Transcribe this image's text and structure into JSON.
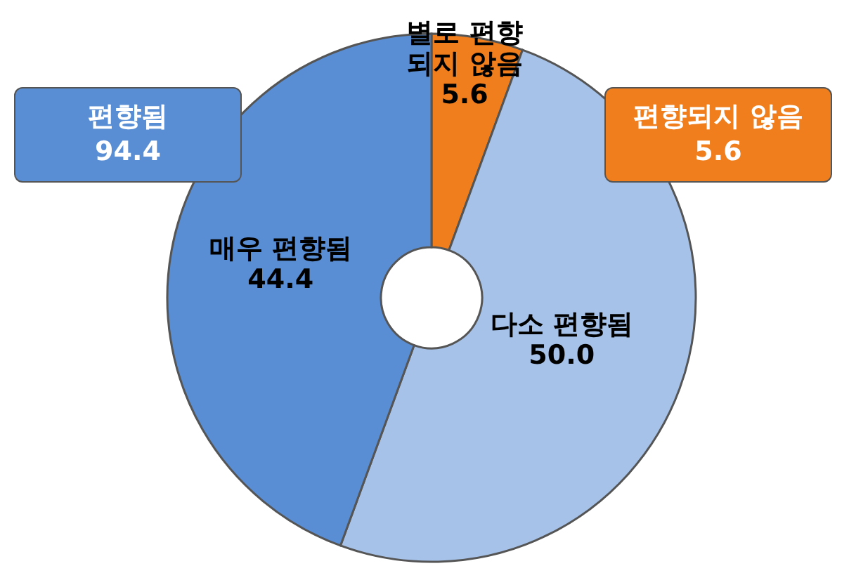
{
  "chart_data": {
    "type": "donut",
    "categories": [
      "별로 편향 되지 않음",
      "다소 편향됨",
      "매우 편향됨"
    ],
    "values": [
      5.6,
      50.0,
      44.4
    ],
    "value_labels": [
      "5.6",
      "50.0",
      "44.4"
    ],
    "colors": [
      "#f07e1c",
      "#a6c2e8",
      "#5a8ed4"
    ],
    "annotations": [
      "편향됨 94.4",
      "편향되지 않음 5.6"
    ],
    "legend": false
  }
}
